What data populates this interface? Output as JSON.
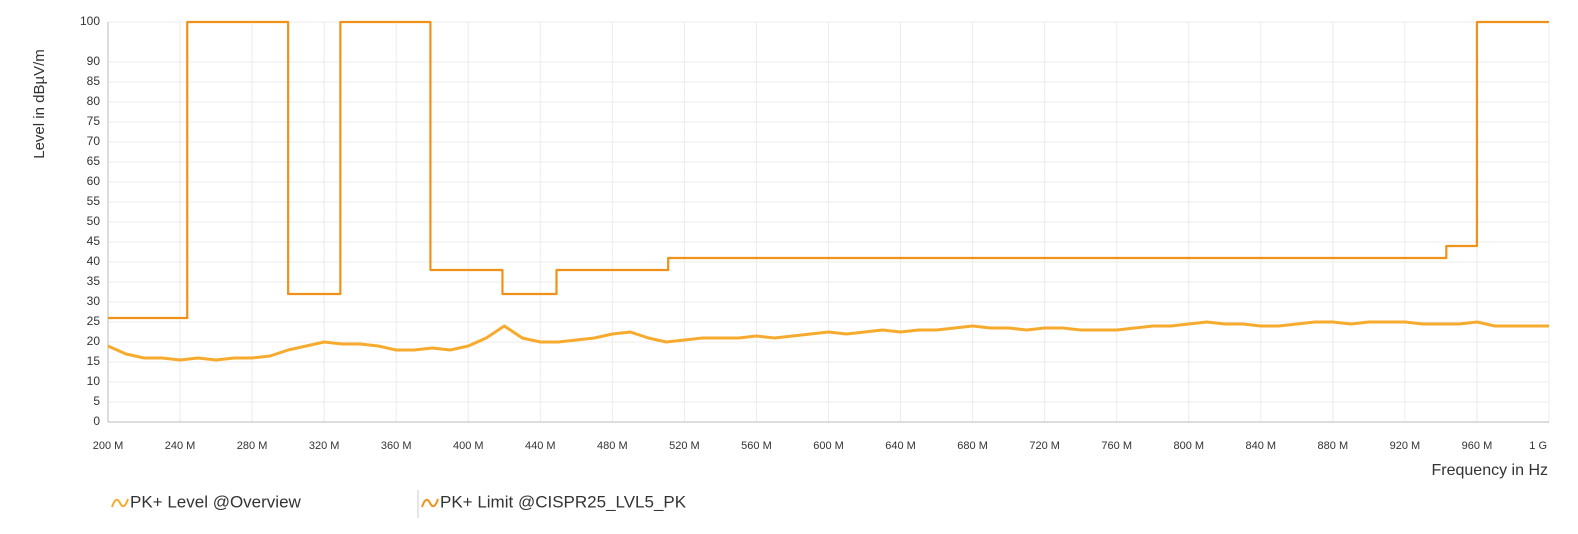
{
  "chart_data": {
    "type": "line",
    "y_label": "Level in dBµV/m",
    "x_label": "Frequency in Hz",
    "xlim": [
      200000000,
      1000000000
    ],
    "ylim": [
      0,
      100
    ],
    "grid": true,
    "legend": "bottom-left",
    "yticks": [
      0,
      5,
      10,
      15,
      20,
      25,
      30,
      35,
      40,
      45,
      50,
      55,
      60,
      65,
      70,
      75,
      80,
      85,
      90,
      100
    ],
    "xticks": [
      {
        "value": 200000000,
        "label": "200 M"
      },
      {
        "value": 240000000,
        "label": "240 M"
      },
      {
        "value": 280000000,
        "label": "280 M"
      },
      {
        "value": 320000000,
        "label": "320 M"
      },
      {
        "value": 360000000,
        "label": "360 M"
      },
      {
        "value": 400000000,
        "label": "400 M"
      },
      {
        "value": 440000000,
        "label": "440 M"
      },
      {
        "value": 480000000,
        "label": "480 M"
      },
      {
        "value": 520000000,
        "label": "520 M"
      },
      {
        "value": 560000000,
        "label": "560 M"
      },
      {
        "value": 600000000,
        "label": "600 M"
      },
      {
        "value": 640000000,
        "label": "640 M"
      },
      {
        "value": 680000000,
        "label": "680 M"
      },
      {
        "value": 720000000,
        "label": "720 M"
      },
      {
        "value": 760000000,
        "label": "760 M"
      },
      {
        "value": 800000000,
        "label": "800 M"
      },
      {
        "value": 840000000,
        "label": "840 M"
      },
      {
        "value": 880000000,
        "label": "880 M"
      },
      {
        "value": 920000000,
        "label": "920 M"
      },
      {
        "value": 960000000,
        "label": "960 M"
      },
      {
        "value": 1000000000,
        "label": "1 G"
      }
    ],
    "series": [
      {
        "name": "PK+ Level @Overview",
        "color": "#f7ab2e",
        "x": [
          200000000,
          210000000,
          220000000,
          230000000,
          240000000,
          250000000,
          260000000,
          270000000,
          280000000,
          290000000,
          300000000,
          310000000,
          320000000,
          330000000,
          340000000,
          350000000,
          360000000,
          370000000,
          380000000,
          390000000,
          400000000,
          410000000,
          420000000,
          430000000,
          440000000,
          450000000,
          460000000,
          470000000,
          480000000,
          490000000,
          500000000,
          510000000,
          520000000,
          530000000,
          540000000,
          550000000,
          560000000,
          570000000,
          580000000,
          590000000,
          600000000,
          610000000,
          620000000,
          630000000,
          640000000,
          650000000,
          660000000,
          670000000,
          680000000,
          690000000,
          700000000,
          710000000,
          720000000,
          730000000,
          740000000,
          750000000,
          760000000,
          770000000,
          780000000,
          790000000,
          800000000,
          810000000,
          820000000,
          830000000,
          840000000,
          850000000,
          860000000,
          870000000,
          880000000,
          890000000,
          900000000,
          910000000,
          920000000,
          930000000,
          940000000,
          950000000,
          960000000,
          970000000,
          980000000,
          990000000,
          1000000000
        ],
        "values": [
          19,
          17,
          16,
          16,
          15.5,
          16,
          15.5,
          16,
          16,
          16.5,
          18,
          19,
          20,
          19.5,
          19.5,
          19,
          18,
          18,
          18.5,
          18,
          19,
          21,
          24,
          21,
          20,
          20,
          20.5,
          21,
          22,
          22.5,
          21,
          20,
          20.5,
          21,
          21,
          21,
          21.5,
          21,
          21.5,
          22,
          22.5,
          22,
          22.5,
          23,
          22.5,
          23,
          23,
          23.5,
          24,
          23.5,
          23.5,
          23,
          23.5,
          23.5,
          23,
          23,
          23,
          23.5,
          24,
          24,
          24.5,
          25,
          24.5,
          24.5,
          24,
          24,
          24.5,
          25,
          25,
          24.5,
          25,
          25,
          25,
          24.5,
          24.5,
          24.5,
          25,
          24,
          24,
          24,
          24
        ]
      },
      {
        "name": "PK+ Limit @CISPR25_LVL5_PK",
        "color": "#f0921a",
        "x": [
          200000000,
          244000000,
          244000000,
          300000000,
          300000000,
          329000000,
          329000000,
          379000000,
          379000000,
          419000000,
          419000000,
          449000000,
          449000000,
          511000000,
          511000000,
          943000000,
          943000000,
          960000000,
          960000000,
          1000000000
        ],
        "values": [
          26,
          26,
          100,
          100,
          32,
          32,
          100,
          100,
          38,
          38,
          32,
          32,
          38,
          38,
          41,
          41,
          44,
          44,
          100,
          100
        ]
      }
    ]
  }
}
